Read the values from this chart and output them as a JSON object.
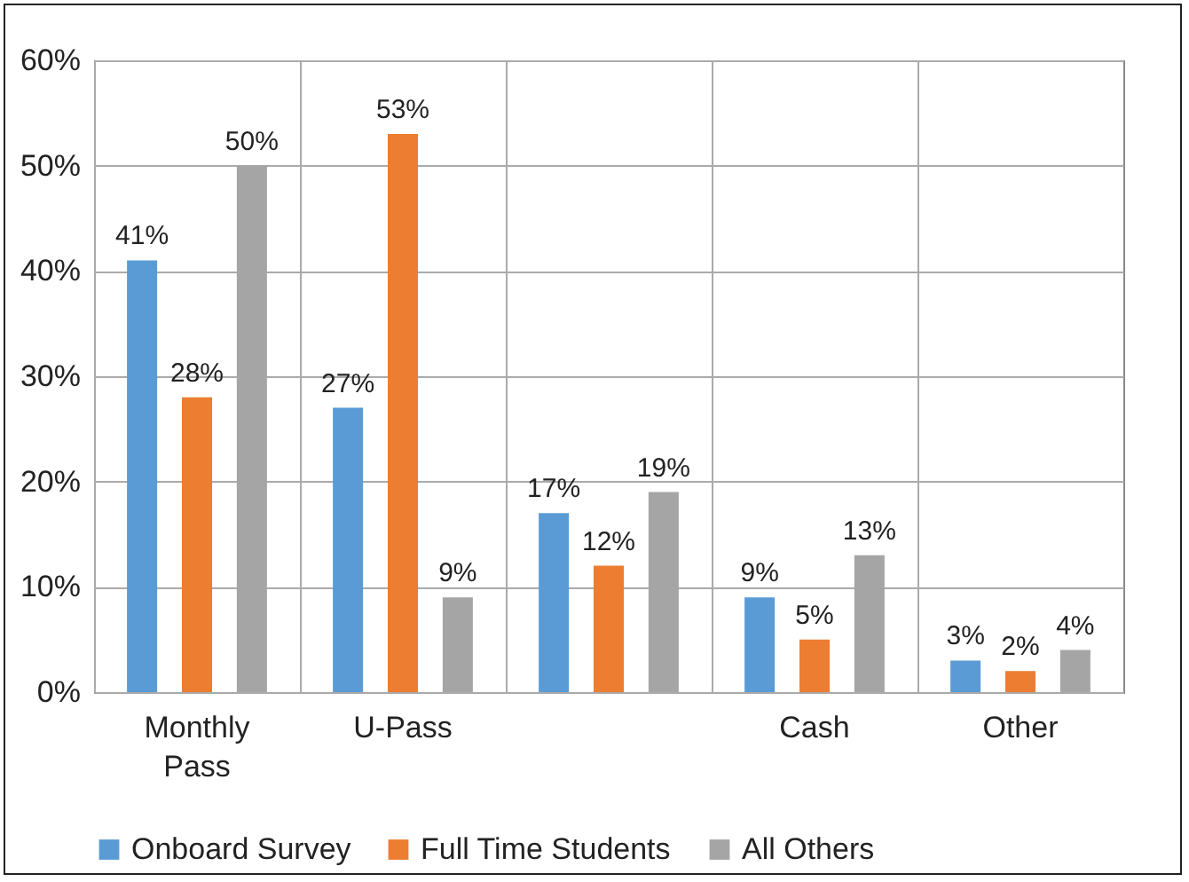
{
  "chart_data": {
    "type": "bar",
    "categories": [
      "Monthly Pass",
      "U-Pass",
      null,
      "Cash",
      "Other"
    ],
    "series": [
      {
        "name": "Onboard Survey",
        "color": "#5b9bd5",
        "values": [
          41,
          27,
          17,
          9,
          3
        ],
        "value_labels": [
          "41%",
          "27%",
          "17%",
          "9%",
          "3%"
        ]
      },
      {
        "name": "Full Time Students",
        "color": "#ed7d31",
        "values": [
          28,
          53,
          12,
          5,
          2
        ],
        "value_labels": [
          "28%",
          "53%",
          "12%",
          "5%",
          "2%"
        ]
      },
      {
        "name": "All Others",
        "color": "#a5a5a5",
        "values": [
          50,
          9,
          19,
          13,
          4
        ],
        "value_labels": [
          "50%",
          "9%",
          "19%",
          "13%",
          "4%"
        ]
      }
    ],
    "ylim": [
      0,
      60
    ],
    "yticks": [
      {
        "value": 0,
        "label": "0%"
      },
      {
        "value": 10,
        "label": "10%"
      },
      {
        "value": 20,
        "label": "20%"
      },
      {
        "value": 30,
        "label": "30%"
      },
      {
        "value": 40,
        "label": "40%"
      },
      {
        "value": 50,
        "label": "50%"
      },
      {
        "value": 60,
        "label": "60%"
      }
    ],
    "grid": true,
    "legend": "bottom"
  }
}
